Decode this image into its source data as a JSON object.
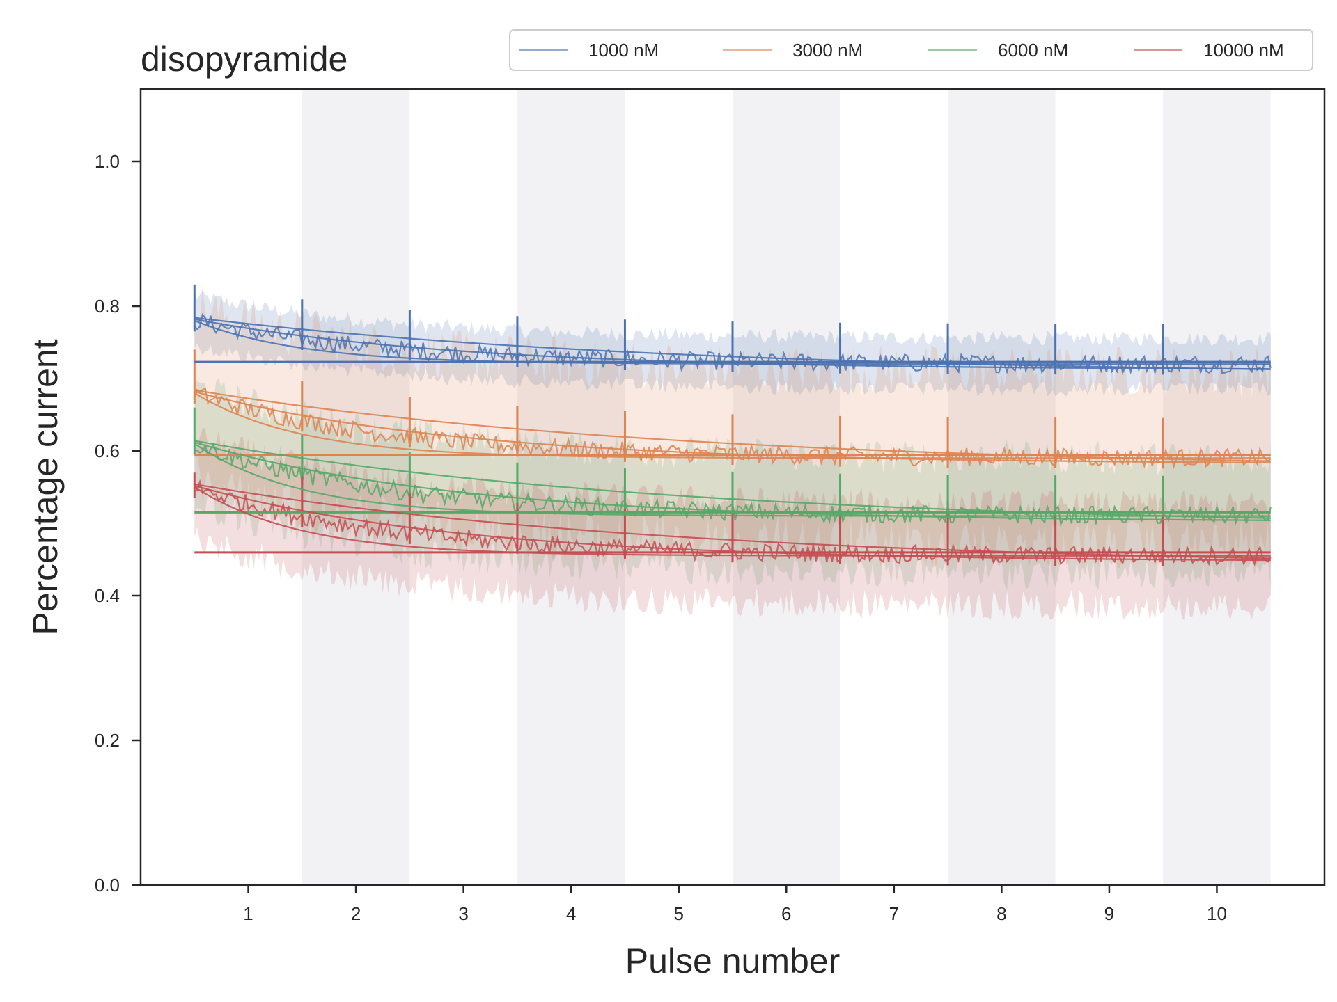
{
  "chart_data": {
    "type": "line",
    "title": "disopyramide",
    "xlabel": "Pulse number",
    "ylabel": "Percentage current",
    "xlim": [
      0.5,
      10.5
    ],
    "ylim": [
      0.0,
      1.1
    ],
    "xticks": [
      "1",
      "2",
      "3",
      "4",
      "5",
      "6",
      "7",
      "8",
      "9",
      "10"
    ],
    "yticks": [
      "0.0",
      "0.2",
      "0.4",
      "0.6",
      "0.8",
      "1.0"
    ],
    "shaded_pulses": [
      2,
      4,
      6,
      8,
      10
    ],
    "legend_location": "top-right",
    "series": [
      {
        "name": "1000 nM",
        "color": "#4c72b0",
        "start": 0.78,
        "end": 0.72,
        "peak": 0.83,
        "band": 0.035
      },
      {
        "name": "3000 nM",
        "color": "#dd8452",
        "start": 0.68,
        "end": 0.59,
        "peak": 0.74,
        "band": 0.12
      },
      {
        "name": "6000 nM",
        "color": "#55a868",
        "start": 0.61,
        "end": 0.51,
        "peak": 0.66,
        "band": 0.08
      },
      {
        "name": "10000 nM",
        "color": "#c44e52",
        "start": 0.55,
        "end": 0.455,
        "peak": 0.57,
        "band": 0.07
      }
    ]
  }
}
